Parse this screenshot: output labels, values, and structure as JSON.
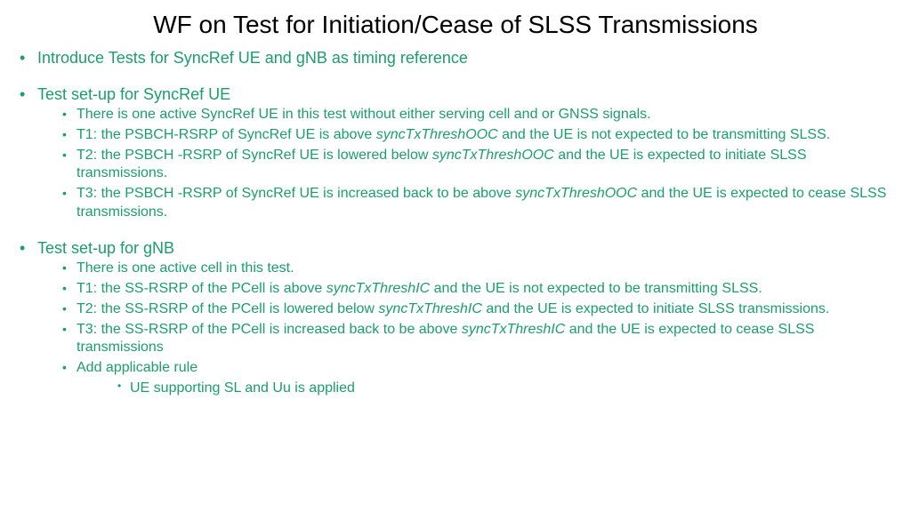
{
  "colors": {
    "title": "#000000",
    "body": "#1a9e6c",
    "background": "#ffffff"
  },
  "typography": {
    "title_fontsize": 28,
    "lvl1_fontsize": 18,
    "lvl2_fontsize": 16,
    "lvl3_fontsize": 16,
    "font_family": "Arial"
  },
  "title": "WF on Test for Initiation/Cease of SLSS Transmissions",
  "bullets": {
    "b1": "Introduce Tests for SyncRef UE and gNB as timing reference",
    "b2": "Test set-up for SyncRef UE",
    "b2_1": "There is one active SyncRef UE in this test without either serving cell and or GNSS signals.",
    "b2_2a": "T1: the PSBCH-RSRP of SyncRef UE is above ",
    "b2_2i": "syncTxThreshOOC",
    "b2_2b": " and the UE is not expected to be transmitting SLSS.",
    "b2_3a": "T2: the PSBCH -RSRP of SyncRef UE is lowered below ",
    "b2_3i": "syncTxThreshOOC",
    "b2_3b": " and the UE is expected to initiate SLSS transmissions.",
    "b2_4a": "T3: the PSBCH -RSRP of SyncRef UE is increased back to be above ",
    "b2_4i": "syncTxThreshOOC",
    "b2_4b": " and the UE is expected to cease SLSS transmissions.",
    "b3": "Test set-up for gNB",
    "b3_1": "There is one active cell in this test.",
    "b3_2a": "T1: the SS-RSRP of the PCell is above ",
    "b3_2i": "syncTxThreshIC",
    "b3_2b": " and the UE is not expected to be transmitting SLSS.",
    "b3_3a": "T2: the SS-RSRP of the PCell is lowered below ",
    "b3_3i": "syncTxThreshIC",
    "b3_3b": " and the UE is expected to initiate SLSS transmissions.",
    "b3_4a": "T3: the SS-RSRP of the PCell is increased back to be above ",
    "b3_4i": "syncTxThreshIC",
    "b3_4b": " and the UE is expected to cease SLSS transmissions",
    "b3_5": "Add applicable rule",
    "b3_5_1": "UE supporting SL and Uu is applied"
  }
}
